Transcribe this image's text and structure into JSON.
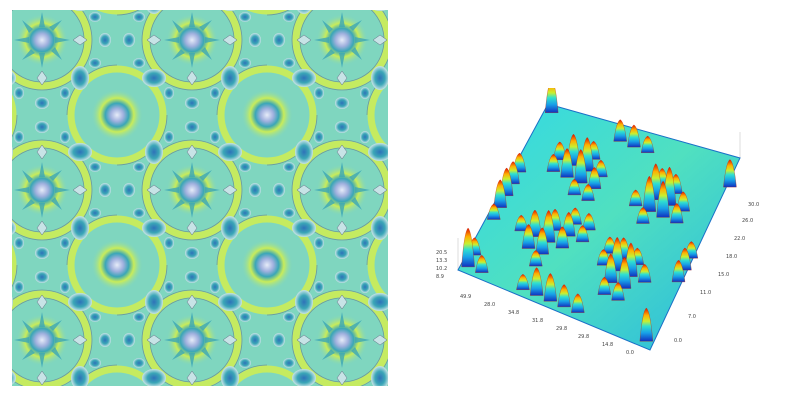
{
  "pattern": {
    "icon": "quasicrystal-pattern-icon",
    "colors": {
      "base": "#7fd6bf",
      "ring": "#c9ec5a",
      "teal": "#3aa6b7",
      "blue": "#2f72b8",
      "light": "#c7e3e6",
      "center": "#bcc7e8"
    }
  },
  "surface": {
    "icon": "3d-surface-plot-icon",
    "axes": {
      "z_ticks": [
        "20.5",
        "13.3",
        "10.2",
        "8.9"
      ],
      "x_ticks": [
        "49.9",
        "28.0",
        "34.8",
        "31.8",
        "29.8",
        "29.8",
        "14.8",
        "0.0"
      ],
      "y_ticks": [
        "30.0",
        "26.0",
        "22.0",
        "18.0",
        "15.0",
        "11.0",
        "7.0",
        "0.0"
      ]
    }
  }
}
